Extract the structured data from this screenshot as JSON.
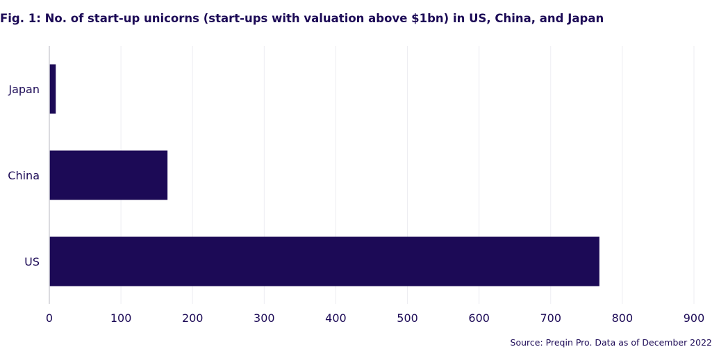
{
  "chart_data": {
    "type": "bar",
    "orientation": "horizontal",
    "title": "Fig. 1: No. of start-up unicorns (start-ups with valuation above $1bn) in US, China, and Japan",
    "categories": [
      "Japan",
      "China",
      "US"
    ],
    "values": [
      9,
      165,
      768
    ],
    "xlim": [
      0,
      900
    ],
    "xticks": [
      0,
      100,
      200,
      300,
      400,
      500,
      600,
      700,
      800,
      900
    ],
    "xlabel": "",
    "ylabel": "",
    "grid": "vertical",
    "legend": "none",
    "bar_color": "#1c0a56",
    "grid_color": "#ececf2",
    "axis_color": "#cfcfd6"
  },
  "source": "Source: Preqin Pro. Data as of December 2022"
}
